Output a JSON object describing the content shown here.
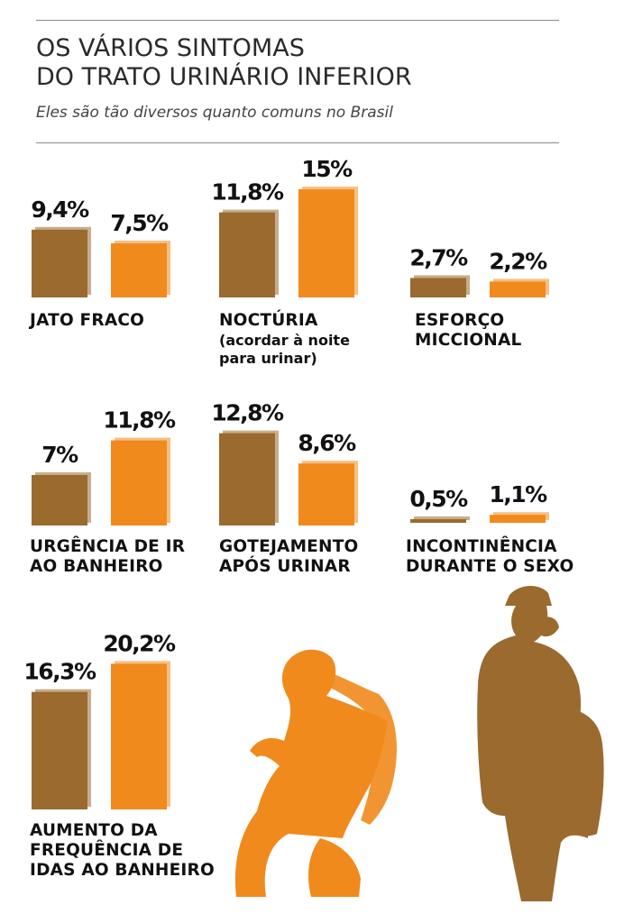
{
  "title_lines": [
    "OS VÁRIOS SINTOMAS",
    "DO TRATO URINÁRIO INFERIOR"
  ],
  "subtitle": "Eles são tão diversos quanto comuns no Brasil",
  "colors": {
    "men": "#9a6a2e",
    "women": "#f08a1c",
    "rule": "#8a8a8a",
    "text": "#111111"
  },
  "chart_data": [
    {
      "type": "bar",
      "category": "JATO FRACO",
      "series_values": [
        9.4,
        7.5
      ],
      "value_labels": [
        "9,4%",
        "7,5%"
      ]
    },
    {
      "type": "bar",
      "category": "NOCTÚRIA",
      "note": "(acordar à noite\npara urinar)",
      "series_values": [
        11.8,
        15
      ],
      "value_labels": [
        "11,8%",
        "15%"
      ]
    },
    {
      "type": "bar",
      "category": "ESFORÇO\nMICCIONAL",
      "series_values": [
        2.7,
        2.2
      ],
      "value_labels": [
        "2,7%",
        "2,2%"
      ]
    },
    {
      "type": "bar",
      "category": "URGÊNCIA DE IR\nAO BANHEIRO",
      "series_values": [
        7,
        11.8
      ],
      "value_labels": [
        "7%",
        "11,8%"
      ]
    },
    {
      "type": "bar",
      "category": "GOTEJAMENTO\nAPÓS URINAR",
      "series_values": [
        12.8,
        8.6
      ],
      "value_labels": [
        "12,8%",
        "8,6%"
      ]
    },
    {
      "type": "bar",
      "category": "INCONTINÊNCIA\nDURANTE O SEXO",
      "series_values": [
        0.5,
        1.1
      ],
      "value_labels": [
        "0,5%",
        "1,1%"
      ]
    },
    {
      "type": "bar",
      "category": "AUMENTO DA\nFREQUÊNCIA DE\nIDAS AO BANHEIRO",
      "series_values": [
        16.3,
        20.2
      ],
      "value_labels": [
        "16,3%",
        "20,2%"
      ]
    }
  ],
  "figures": {
    "woman": "seated-woman-figure",
    "man": "standing-man-figure"
  }
}
